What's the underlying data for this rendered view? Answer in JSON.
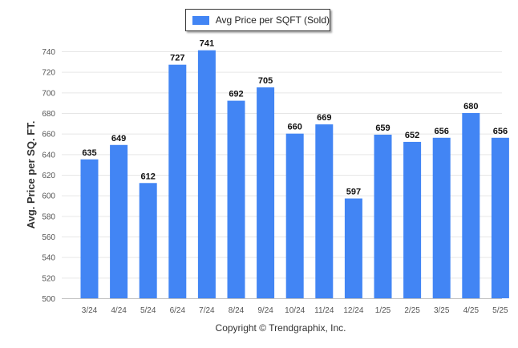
{
  "chart_data": {
    "type": "bar",
    "title": "",
    "xlabel": "",
    "ylabel": "Avg. Price per SQ. FT.",
    "categories": [
      "3/24",
      "4/24",
      "5/24",
      "6/24",
      "7/24",
      "8/24",
      "9/24",
      "10/24",
      "11/24",
      "12/24",
      "1/25",
      "2/25",
      "3/25",
      "4/25",
      "5/25"
    ],
    "series": [
      {
        "name": "Avg Price per SQFT (Sold)",
        "values": [
          635,
          649,
          612,
          727,
          741,
          692,
          705,
          660,
          669,
          597,
          659,
          652,
          656,
          680,
          656
        ]
      }
    ],
    "ylim": [
      500,
      740
    ],
    "yticks": [
      500,
      520,
      540,
      560,
      580,
      600,
      620,
      640,
      660,
      680,
      700,
      720,
      740
    ],
    "grid": true,
    "legend_position": "top-center",
    "data_labels": true,
    "bar_color": "#4285f4"
  },
  "footer": {
    "copyright": "Copyright © Trendgraphix, Inc."
  }
}
